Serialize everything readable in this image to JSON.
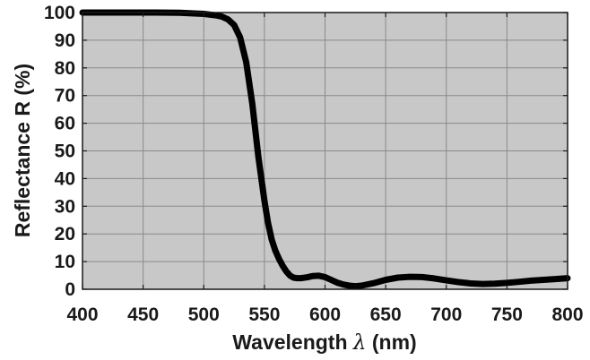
{
  "chart_data": {
    "type": "line",
    "title": "",
    "xlabel_prefix": "Wavelength ",
    "xlabel_symbol": "λ",
    "xlabel_suffix": " (nm)",
    "ylabel": "Reflectance R (%)",
    "xlim": [
      400,
      800
    ],
    "ylim": [
      0,
      100
    ],
    "x_ticks": [
      400,
      450,
      500,
      550,
      600,
      650,
      700,
      750,
      800
    ],
    "y_ticks": [
      0,
      10,
      20,
      30,
      40,
      50,
      60,
      70,
      80,
      90,
      100
    ],
    "grid": true,
    "background": "#c8c8c8",
    "line_color": "#000000",
    "series": [
      {
        "x": [
          400,
          420,
          440,
          460,
          480,
          500,
          510,
          515,
          520,
          525,
          530,
          535,
          540,
          545,
          550,
          553,
          556,
          559,
          562,
          565,
          568,
          571,
          574,
          577,
          580,
          585,
          590,
          595,
          600,
          605,
          610,
          615,
          620,
          625,
          630,
          640,
          650,
          660,
          670,
          680,
          690,
          700,
          710,
          720,
          730,
          740,
          750,
          760,
          770,
          780,
          790,
          800
        ],
        "y": [
          100,
          100,
          100,
          100,
          99.9,
          99.5,
          99,
          98.5,
          97.5,
          95.5,
          91,
          82,
          67,
          48,
          32,
          24,
          18,
          14,
          11,
          8.5,
          6.5,
          5,
          4.2,
          4,
          4,
          4.3,
          4.8,
          4.9,
          4.4,
          3.4,
          2.4,
          1.7,
          1.3,
          1.1,
          1.3,
          2.2,
          3.4,
          4.2,
          4.5,
          4.4,
          3.9,
          3.2,
          2.6,
          2.1,
          1.9,
          2,
          2.3,
          2.7,
          3.1,
          3.4,
          3.7,
          4
        ]
      }
    ]
  }
}
